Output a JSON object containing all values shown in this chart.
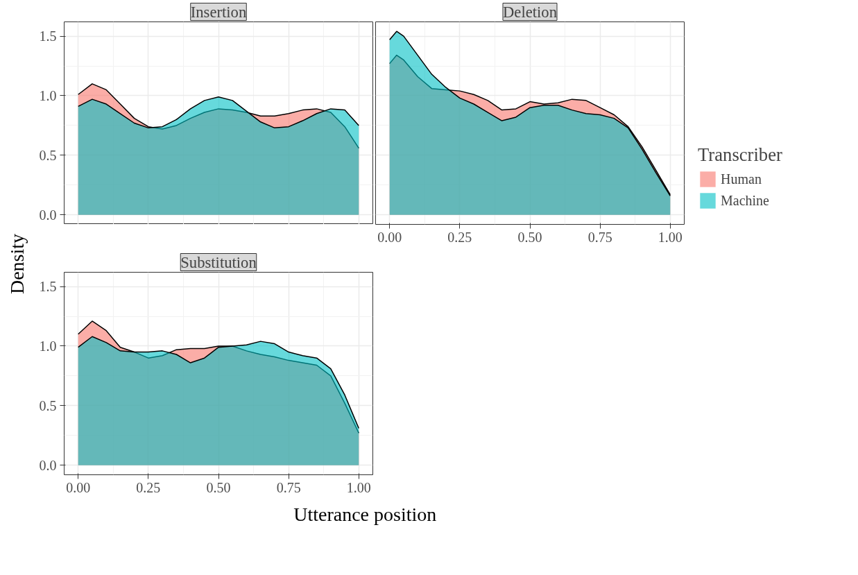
{
  "chart_data": [
    {
      "type": "area",
      "title": "Insertion",
      "tick_labels": "y",
      "grid": true,
      "legend": false,
      "xlim": [
        -0.05,
        1.05
      ],
      "ylim": [
        -0.08,
        1.62
      ],
      "xticks": [
        0,
        0.25,
        0.5,
        0.75,
        1
      ],
      "yticks": [
        {
          "value": 0,
          "label": "0.0"
        },
        {
          "value": 0.5,
          "label": "0.5"
        },
        {
          "value": 1,
          "label": "1.0"
        },
        {
          "value": 1.5,
          "label": "1.5"
        }
      ],
      "x": [
        0,
        0.05,
        0.1,
        0.15,
        0.2,
        0.25,
        0.3,
        0.35,
        0.4,
        0.45,
        0.5,
        0.55,
        0.6,
        0.65,
        0.7,
        0.75,
        0.8,
        0.85,
        0.9,
        0.95,
        1
      ],
      "series": [
        {
          "color": "#f8766d",
          "values": [
            1.01,
            1.1,
            1.05,
            0.93,
            0.81,
            0.74,
            0.72,
            0.75,
            0.81,
            0.86,
            0.89,
            0.88,
            0.86,
            0.83,
            0.83,
            0.85,
            0.88,
            0.89,
            0.86,
            0.74,
            0.56
          ]
        },
        {
          "color": "#00bfc4",
          "values": [
            0.91,
            0.97,
            0.93,
            0.85,
            0.77,
            0.73,
            0.74,
            0.8,
            0.89,
            0.96,
            0.99,
            0.96,
            0.87,
            0.78,
            0.73,
            0.74,
            0.79,
            0.85,
            0.89,
            0.88,
            0.75
          ]
        }
      ]
    },
    {
      "type": "area",
      "title": "Deletion",
      "tick_labels": "x",
      "grid": true,
      "legend": "right",
      "legend_title": "Transcriber",
      "xlim": [
        -0.05,
        1.05
      ],
      "ylim": [
        -0.08,
        1.62
      ],
      "xticks": [
        {
          "value": 0,
          "label": "0.00"
        },
        {
          "value": 0.25,
          "label": "0.25"
        },
        {
          "value": 0.5,
          "label": "0.50"
        },
        {
          "value": 0.75,
          "label": "0.75"
        },
        {
          "value": 1,
          "label": "1.00"
        }
      ],
      "yticks": [
        0,
        0.5,
        1,
        1.5
      ],
      "x": [
        0,
        0.025,
        0.05,
        0.1,
        0.15,
        0.2,
        0.25,
        0.3,
        0.35,
        0.4,
        0.45,
        0.5,
        0.55,
        0.6,
        0.65,
        0.7,
        0.75,
        0.8,
        0.85,
        0.9,
        0.95,
        1
      ],
      "series": [
        {
          "name": "Human",
          "color": "#f8766d",
          "values": [
            1.27,
            1.34,
            1.3,
            1.16,
            1.06,
            1.05,
            1.04,
            1.01,
            0.96,
            0.88,
            0.89,
            0.95,
            0.93,
            0.94,
            0.97,
            0.96,
            0.9,
            0.84,
            0.74,
            0.57,
            0.37,
            0.17
          ]
        },
        {
          "name": "Machine",
          "color": "#00bfc4",
          "values": [
            1.47,
            1.54,
            1.5,
            1.34,
            1.18,
            1.07,
            0.98,
            0.93,
            0.86,
            0.79,
            0.82,
            0.9,
            0.92,
            0.92,
            0.88,
            0.85,
            0.84,
            0.81,
            0.73,
            0.55,
            0.35,
            0.16
          ]
        }
      ]
    },
    {
      "type": "area",
      "title": "Substitution",
      "xlabel": "Utterance position",
      "ylabel": "Density",
      "grid": true,
      "legend": false,
      "xlim": [
        -0.05,
        1.05
      ],
      "ylim": [
        -0.08,
        1.62
      ],
      "xticks": [
        {
          "value": 0,
          "label": "0.00"
        },
        {
          "value": 0.25,
          "label": "0.25"
        },
        {
          "value": 0.5,
          "label": "0.50"
        },
        {
          "value": 0.75,
          "label": "0.75"
        },
        {
          "value": 1,
          "label": "1.00"
        }
      ],
      "yticks": [
        {
          "value": 0,
          "label": "0.0"
        },
        {
          "value": 0.5,
          "label": "0.5"
        },
        {
          "value": 1,
          "label": "1.0"
        },
        {
          "value": 1.5,
          "label": "1.5"
        }
      ],
      "x": [
        0,
        0.05,
        0.1,
        0.15,
        0.2,
        0.25,
        0.3,
        0.35,
        0.4,
        0.45,
        0.5,
        0.55,
        0.6,
        0.65,
        0.7,
        0.75,
        0.8,
        0.85,
        0.9,
        0.95,
        1
      ],
      "series": [
        {
          "color": "#f8766d",
          "values": [
            1.1,
            1.21,
            1.13,
            0.99,
            0.95,
            0.9,
            0.92,
            0.97,
            0.98,
            0.98,
            1.0,
            1.0,
            0.96,
            0.93,
            0.91,
            0.88,
            0.86,
            0.84,
            0.75,
            0.52,
            0.27
          ]
        },
        {
          "color": "#00bfc4",
          "values": [
            0.99,
            1.08,
            1.03,
            0.96,
            0.95,
            0.95,
            0.96,
            0.93,
            0.86,
            0.9,
            0.99,
            1.0,
            1.01,
            1.04,
            1.02,
            0.95,
            0.92,
            0.9,
            0.81,
            0.59,
            0.31
          ]
        }
      ]
    }
  ]
}
